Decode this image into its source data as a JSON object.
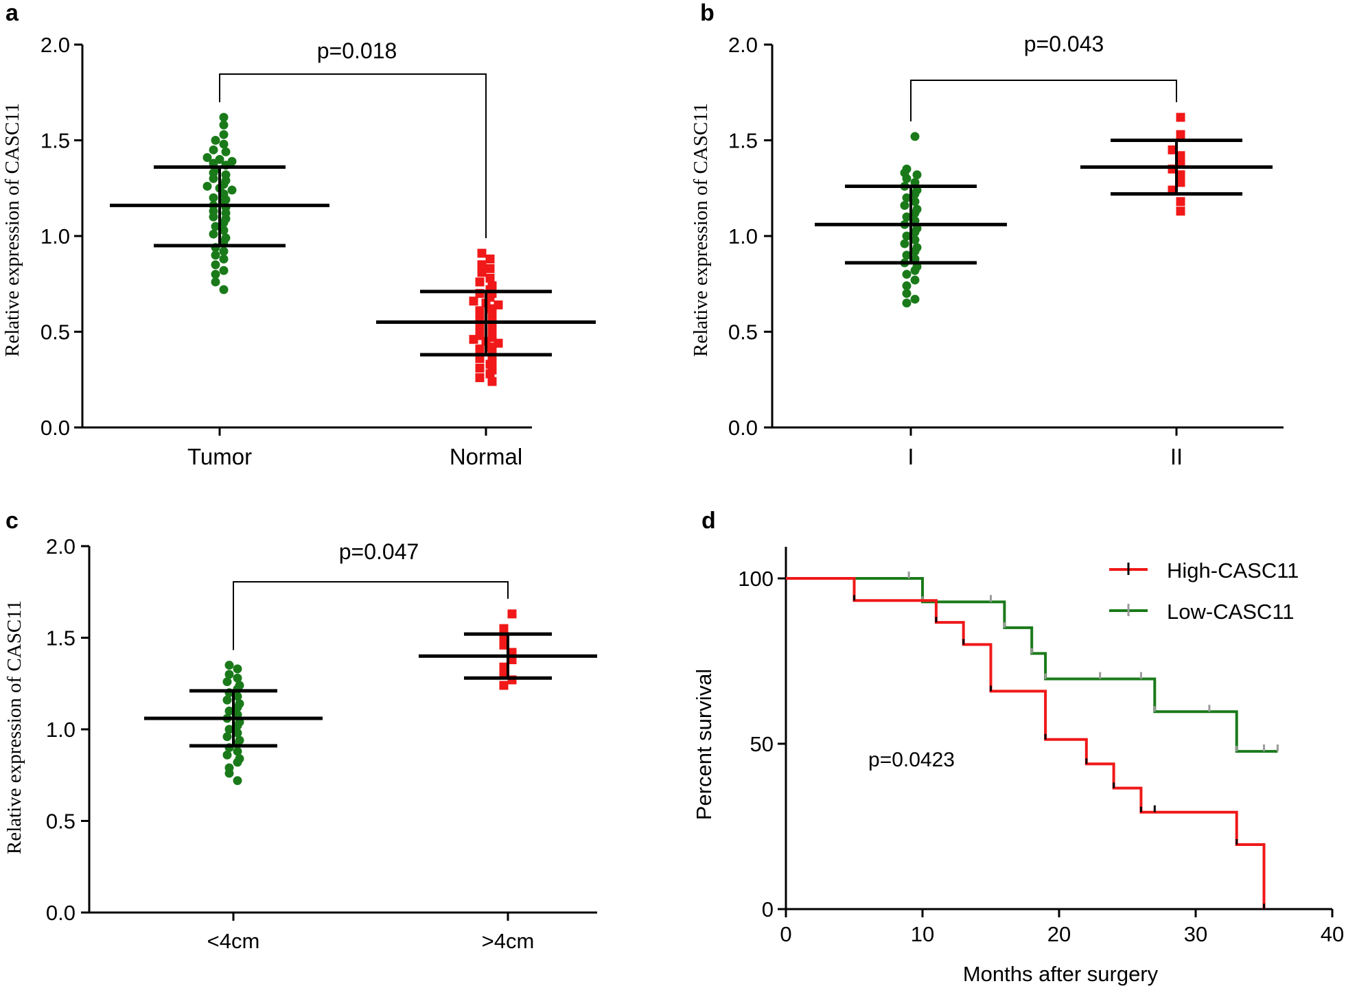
{
  "colors": {
    "tumor": "#1a7a1a",
    "normal": "#f01818",
    "axis": "#000000",
    "censor": "#9a9a9a"
  },
  "chart_data": [
    {
      "panel": "a",
      "type": "scatter",
      "ylabel": "Relative expression of CASC11",
      "ylim": [
        0,
        2
      ],
      "yticks": [
        "0.0",
        "0.5",
        "1.0",
        "1.5",
        "2.0"
      ],
      "categories": [
        "Tumor",
        "Normal"
      ],
      "pvalue": "p=0.018",
      "groups": [
        {
          "name": "Tumor",
          "marker": "circle",
          "mean": 1.16,
          "sd_upper": 1.36,
          "sd_lower": 0.95,
          "values": [
            1.62,
            1.58,
            1.53,
            1.5,
            1.48,
            1.45,
            1.44,
            1.41,
            1.4,
            1.39,
            1.38,
            1.37,
            1.35,
            1.33,
            1.32,
            1.3,
            1.29,
            1.27,
            1.26,
            1.25,
            1.24,
            1.22,
            1.2,
            1.19,
            1.18,
            1.16,
            1.15,
            1.13,
            1.12,
            1.1,
            1.09,
            1.07,
            1.05,
            1.03,
            1.01,
            0.99,
            0.97,
            0.94,
            0.92,
            0.9,
            0.88,
            0.85,
            0.82,
            0.8,
            0.76,
            0.72
          ]
        },
        {
          "name": "Normal",
          "marker": "square",
          "mean": 0.55,
          "sd_upper": 0.71,
          "sd_lower": 0.38,
          "values": [
            0.91,
            0.88,
            0.85,
            0.83,
            0.81,
            0.78,
            0.76,
            0.74,
            0.72,
            0.7,
            0.7,
            0.68,
            0.66,
            0.65,
            0.64,
            0.62,
            0.61,
            0.6,
            0.58,
            0.57,
            0.56,
            0.55,
            0.53,
            0.52,
            0.51,
            0.5,
            0.48,
            0.47,
            0.46,
            0.45,
            0.44,
            0.42,
            0.41,
            0.4,
            0.38,
            0.37,
            0.36,
            0.34,
            0.33,
            0.31,
            0.3,
            0.28,
            0.26,
            0.24
          ]
        }
      ]
    },
    {
      "panel": "b",
      "type": "scatter",
      "ylabel": "Relative expression of CASC11",
      "ylim": [
        0,
        2
      ],
      "yticks": [
        "0.0",
        "0.5",
        "1.0",
        "1.5",
        "2.0"
      ],
      "categories": [
        "I",
        "II"
      ],
      "pvalue": "p=0.043",
      "groups": [
        {
          "name": "I",
          "marker": "circle",
          "mean": 1.06,
          "sd_upper": 1.26,
          "sd_lower": 0.86,
          "values": [
            1.52,
            1.35,
            1.33,
            1.32,
            1.3,
            1.28,
            1.26,
            1.24,
            1.22,
            1.2,
            1.18,
            1.16,
            1.14,
            1.12,
            1.1,
            1.08,
            1.06,
            1.04,
            1.02,
            1.0,
            0.98,
            0.96,
            0.94,
            0.92,
            0.9,
            0.88,
            0.86,
            0.84,
            0.82,
            0.8,
            0.77,
            0.74,
            0.7,
            0.67,
            0.65
          ]
        },
        {
          "name": "II",
          "marker": "square",
          "mean": 1.36,
          "sd_upper": 1.5,
          "sd_lower": 1.22,
          "values": [
            1.62,
            1.53,
            1.45,
            1.42,
            1.38,
            1.35,
            1.32,
            1.28,
            1.24,
            1.18,
            1.13
          ]
        }
      ]
    },
    {
      "panel": "c",
      "type": "scatter",
      "ylabel": "Relative expression of CASC11",
      "ylim": [
        0,
        2
      ],
      "yticks": [
        "0.0",
        "0.5",
        "1.0",
        "1.5",
        "2.0"
      ],
      "categories": [
        "<4cm",
        ">4cm"
      ],
      "pvalue": "p=0.047",
      "groups": [
        {
          "name": "<4cm",
          "marker": "circle",
          "mean": 1.06,
          "sd_upper": 1.21,
          "sd_lower": 0.91,
          "values": [
            1.35,
            1.33,
            1.3,
            1.28,
            1.26,
            1.24,
            1.22,
            1.2,
            1.18,
            1.16,
            1.14,
            1.12,
            1.1,
            1.08,
            1.06,
            1.04,
            1.02,
            1.0,
            0.98,
            0.96,
            0.94,
            0.92,
            0.9,
            0.88,
            0.86,
            0.84,
            0.82,
            0.79,
            0.76,
            0.72
          ]
        },
        {
          "name": ">4cm",
          "marker": "square",
          "mean": 1.4,
          "sd_upper": 1.52,
          "sd_lower": 1.28,
          "values": [
            1.63,
            1.55,
            1.5,
            1.46,
            1.42,
            1.38,
            1.34,
            1.3,
            1.27,
            1.24
          ]
        }
      ]
    },
    {
      "panel": "d",
      "type": "line",
      "subtype": "kaplan-meier",
      "xlabel": "Months after surgery",
      "ylabel": "Percent survival",
      "xlim": [
        0,
        40
      ],
      "ylim": [
        0,
        110
      ],
      "xticks": [
        0,
        10,
        20,
        30,
        40
      ],
      "yticks": [
        0,
        50,
        100
      ],
      "pvalue": "p=0.0423",
      "series": [
        {
          "name": "High-CASC11",
          "steps": [
            [
              0,
              100
            ],
            [
              5,
              93.3
            ],
            [
              11,
              86.7
            ],
            [
              13,
              80
            ],
            [
              15,
              65.9
            ],
            [
              19,
              51.3
            ],
            [
              22,
              43.9
            ],
            [
              24,
              36.6
            ],
            [
              26,
              29.3
            ],
            [
              33,
              19.5
            ],
            [
              35,
              0
            ]
          ],
          "censored": [
            [
              27,
              29.3
            ]
          ]
        },
        {
          "name": "Low-CASC11",
          "steps": [
            [
              0,
              100
            ],
            [
              10,
              92.9
            ],
            [
              16,
              85.1
            ],
            [
              18,
              77.3
            ],
            [
              19,
              69.6
            ],
            [
              27,
              59.7
            ],
            [
              33,
              47.7
            ],
            [
              36,
              47.7
            ]
          ],
          "censored": [
            [
              9,
              100
            ],
            [
              15,
              92.9
            ],
            [
              23,
              69.6
            ],
            [
              26,
              69.6
            ],
            [
              31,
              59.7
            ],
            [
              35,
              47.7
            ],
            [
              36,
              47.7
            ]
          ]
        }
      ]
    }
  ]
}
